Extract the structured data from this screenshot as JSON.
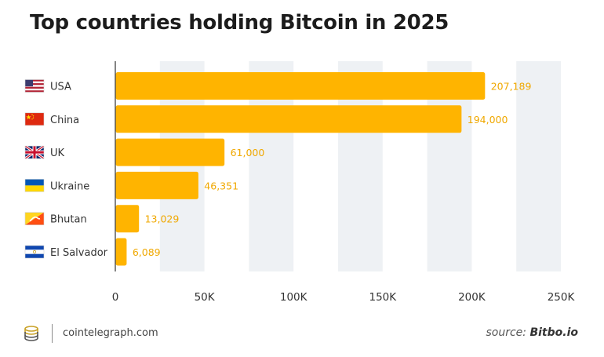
{
  "title": "Top countries holding Bitcoin in 2025",
  "footer": {
    "site": "cointelegraph.com",
    "source_label": "source:",
    "source_name": "Bitbo.io"
  },
  "colors": {
    "bar": "#ffb400",
    "value_label": "#f0a800",
    "band": "#eef1f4",
    "axis": "#333333"
  },
  "chart_data": {
    "type": "bar",
    "orientation": "horizontal",
    "title": "Top countries holding Bitcoin in 2025",
    "categories": [
      "USA",
      "China",
      "UK",
      "Ukraine",
      "Bhutan",
      "El Salvador"
    ],
    "flags": [
      "us-flag-icon",
      "china-flag-icon",
      "uk-flag-icon",
      "ukraine-flag-icon",
      "bhutan-flag-icon",
      "el-salvador-flag-icon"
    ],
    "values": [
      207189,
      194000,
      61000,
      46351,
      13029,
      6089
    ],
    "value_labels": [
      "207,189",
      "194,000",
      "61,000",
      "46,351",
      "13,029",
      "6,089"
    ],
    "xlim": [
      0,
      250000
    ],
    "xticks": [
      0,
      50000,
      100000,
      150000,
      200000,
      250000
    ],
    "xtick_labels": [
      "0",
      "50K",
      "100K",
      "150K",
      "200K",
      "250K"
    ],
    "xlabel": "",
    "ylabel": ""
  }
}
